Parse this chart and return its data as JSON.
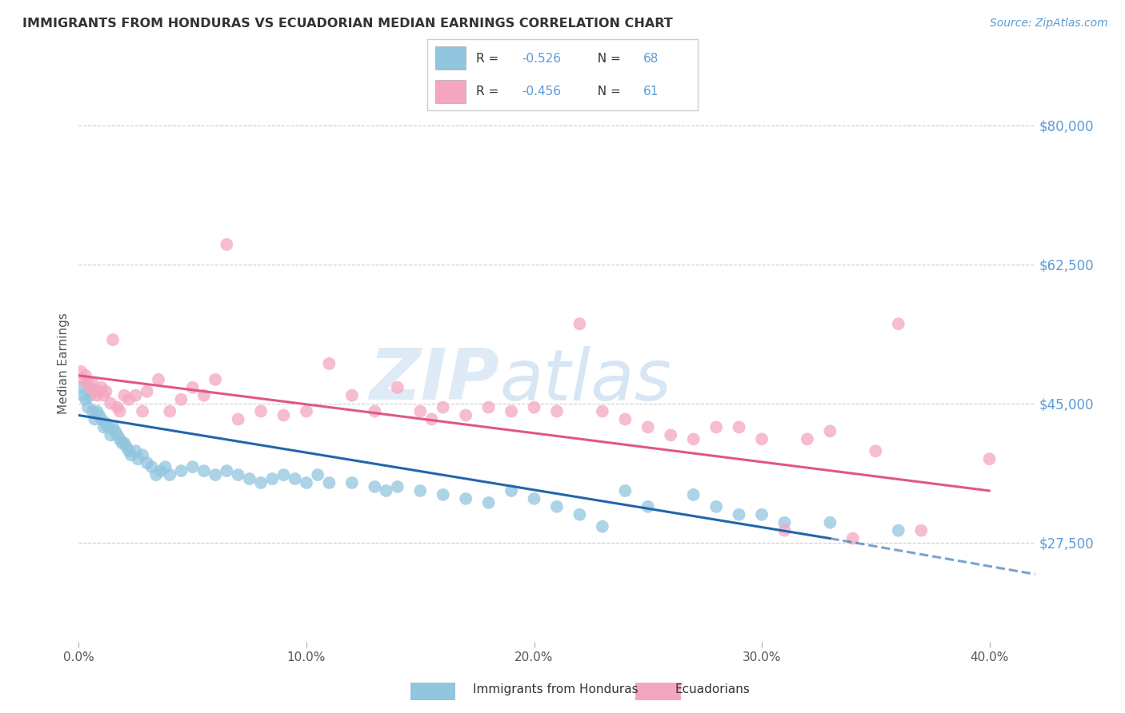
{
  "title": "IMMIGRANTS FROM HONDURAS VS ECUADORIAN MEDIAN EARNINGS CORRELATION CHART",
  "source": "Source: ZipAtlas.com",
  "ylabel": "Median Earnings",
  "xlabel_ticks": [
    0.0,
    10.0,
    20.0,
    30.0,
    40.0
  ],
  "xlabel_labels": [
    "0.0%",
    "10.0%",
    "20.0%",
    "30.0%",
    "40.0%"
  ],
  "yticks": [
    27500,
    45000,
    62500,
    80000
  ],
  "ytick_labels": [
    "$27,500",
    "$45,000",
    "$62,500",
    "$80,000"
  ],
  "ylim": [
    15000,
    85000
  ],
  "xlim": [
    0.0,
    42.0
  ],
  "blue_R": "-0.526",
  "blue_N": "68",
  "pink_R": "-0.456",
  "pink_N": "61",
  "blue_color": "#92c5de",
  "pink_color": "#f4a6c0",
  "blue_line_color": "#2166ac",
  "pink_line_color": "#e05880",
  "axis_label_color": "#5b9bd5",
  "title_color": "#333333",
  "background_color": "#ffffff",
  "watermark_text": "ZIP",
  "watermark_text2": "atlas",
  "blue_scatter_x": [
    0.1,
    0.2,
    0.3,
    0.4,
    0.5,
    0.6,
    0.7,
    0.8,
    0.9,
    1.0,
    1.1,
    1.2,
    1.3,
    1.4,
    1.5,
    1.6,
    1.7,
    1.8,
    1.9,
    2.0,
    2.1,
    2.2,
    2.3,
    2.5,
    2.6,
    2.8,
    3.0,
    3.2,
    3.4,
    3.6,
    3.8,
    4.0,
    4.5,
    5.0,
    5.5,
    6.0,
    6.5,
    7.0,
    7.5,
    8.0,
    8.5,
    9.0,
    9.5,
    10.0,
    10.5,
    11.0,
    12.0,
    13.0,
    13.5,
    14.0,
    15.0,
    16.0,
    17.0,
    18.0,
    19.0,
    20.0,
    21.0,
    22.0,
    23.0,
    24.0,
    25.0,
    27.0,
    28.0,
    29.0,
    30.0,
    31.0,
    33.0,
    36.0
  ],
  "blue_scatter_y": [
    47000,
    46000,
    45500,
    44500,
    46000,
    44000,
    43000,
    44000,
    43500,
    43000,
    42000,
    42500,
    42000,
    41000,
    42000,
    41500,
    41000,
    40500,
    40000,
    40000,
    39500,
    39000,
    38500,
    39000,
    38000,
    38500,
    37500,
    37000,
    36000,
    36500,
    37000,
    36000,
    36500,
    37000,
    36500,
    36000,
    36500,
    36000,
    35500,
    35000,
    35500,
    36000,
    35500,
    35000,
    36000,
    35000,
    35000,
    34500,
    34000,
    34500,
    34000,
    33500,
    33000,
    32500,
    34000,
    33000,
    32000,
    31000,
    29500,
    34000,
    32000,
    33500,
    32000,
    31000,
    31000,
    30000,
    30000,
    29000
  ],
  "pink_scatter_x": [
    0.1,
    0.2,
    0.3,
    0.4,
    0.5,
    0.6,
    0.7,
    0.8,
    0.9,
    1.0,
    1.1,
    1.2,
    1.4,
    1.5,
    1.7,
    1.8,
    2.0,
    2.2,
    2.5,
    2.8,
    3.0,
    3.5,
    4.0,
    4.5,
    5.0,
    5.5,
    6.0,
    6.5,
    7.0,
    8.0,
    9.0,
    10.0,
    11.0,
    12.0,
    13.0,
    14.0,
    15.0,
    15.5,
    16.0,
    17.0,
    18.0,
    19.0,
    20.0,
    21.0,
    22.0,
    23.0,
    24.0,
    25.0,
    26.0,
    27.0,
    28.0,
    29.0,
    30.0,
    31.0,
    32.0,
    33.0,
    34.0,
    35.0,
    36.0,
    37.0,
    40.0
  ],
  "pink_scatter_y": [
    49000,
    48000,
    48500,
    47500,
    47000,
    47500,
    46500,
    46000,
    46500,
    47000,
    46000,
    46500,
    45000,
    53000,
    44500,
    44000,
    46000,
    45500,
    46000,
    44000,
    46500,
    48000,
    44000,
    45500,
    47000,
    46000,
    48000,
    65000,
    43000,
    44000,
    43500,
    44000,
    50000,
    46000,
    44000,
    47000,
    44000,
    43000,
    44500,
    43500,
    44500,
    44000,
    44500,
    44000,
    55000,
    44000,
    43000,
    42000,
    41000,
    40500,
    42000,
    42000,
    40500,
    29000,
    40500,
    41500,
    28000,
    39000,
    55000,
    29000,
    38000
  ],
  "blue_line_x0": 0.0,
  "blue_line_y0": 43500,
  "blue_line_x1": 33.0,
  "blue_line_y1": 28000,
  "blue_dash_x0": 33.0,
  "blue_dash_y0": 28000,
  "blue_dash_x1": 42.0,
  "blue_dash_y1": 23500,
  "pink_line_x0": 0.0,
  "pink_line_y0": 48500,
  "pink_line_x1": 40.0,
  "pink_line_y1": 34000
}
